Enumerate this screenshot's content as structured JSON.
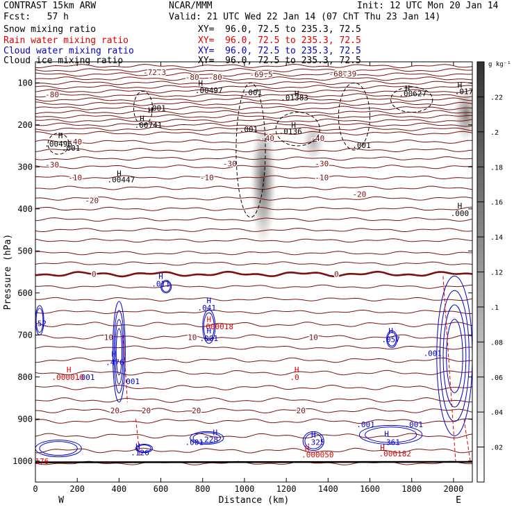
{
  "header": {
    "model": "CONTRAST 15km ARW",
    "org": "NCAR/MMM",
    "init": "Init: 12 UTC Mon 20 Jan 14",
    "fcst": "Fcst:   57 h",
    "valid": "Valid: 21 UTC Wed 22 Jan 14 (07 ChT Thu 23 Jan 14)"
  },
  "fields": [
    {
      "name": "Snow mixing ratio",
      "xy": "XY=  96.0, 72.5 to 235.3, 72.5",
      "color": "#000000"
    },
    {
      "name": "Rain water mixing ratio",
      "xy": "XY=  96.0, 72.5 to 235.3, 72.5",
      "color": "#e00000"
    },
    {
      "name": "Cloud water mixing ratio",
      "xy": "XY=  96.0, 72.5 to 235.3, 72.5",
      "color": "#0000cc"
    },
    {
      "name": "Cloud ice mixing ratio",
      "xy": "XY=  96.0, 72.5 to 235.3, 72.5",
      "color": "#000000"
    }
  ],
  "chart_data": {
    "type": "cross-section",
    "xlabel": "Distance (km)",
    "ylabel": "Pressure (hPa)",
    "xlim": [
      0,
      2090
    ],
    "ylim": [
      1050,
      50
    ],
    "x_ticks": [
      "0",
      "200",
      "400",
      "600",
      "800",
      "1000",
      "1200",
      "1400",
      "1600",
      "1800",
      "2000"
    ],
    "x_tick_values": [
      0,
      200,
      400,
      600,
      800,
      1000,
      1200,
      1400,
      1600,
      1800,
      2000
    ],
    "y_ticks": [
      "100",
      "200",
      "300",
      "400",
      "500",
      "600",
      "700",
      "800",
      "900",
      "1000"
    ],
    "y_tick_values": [
      100,
      200,
      300,
      400,
      500,
      600,
      700,
      800,
      900,
      1000
    ],
    "west_label": "W",
    "east_label": "E",
    "colorbar": {
      "unit": "g kg⁻¹",
      "ticks": [
        ".02",
        ".04",
        ".06",
        ".08",
        ".1",
        ".12",
        ".14",
        ".16",
        ".18",
        ".2",
        ".22"
      ],
      "tick_values": [
        0.02,
        0.04,
        0.06,
        0.08,
        0.1,
        0.12,
        0.14,
        0.16,
        0.18,
        0.2,
        0.22
      ],
      "range": [
        0,
        0.24
      ]
    },
    "temperature_contours": {
      "color": "#7a1010",
      "zero_color": "#7a1010",
      "levels": [
        {
          "p": 1005,
          "amp": 3,
          "label": ""
        },
        {
          "p": 975,
          "amp": 4,
          "label": ""
        },
        {
          "p": 940,
          "amp": 4,
          "label": ""
        },
        {
          "p": 905,
          "amp": 4,
          "label": ""
        },
        {
          "p": 880,
          "amp": 4,
          "label": "20",
          "lx": [
            380,
            530,
            770,
            1270
          ]
        },
        {
          "p": 855,
          "amp": 4,
          "label": ""
        },
        {
          "p": 825,
          "amp": 4,
          "label": ""
        },
        {
          "p": 790,
          "amp": 4,
          "label": ""
        },
        {
          "p": 760,
          "amp": 4,
          "label": ""
        },
        {
          "p": 730,
          "amp": 3,
          "label": ""
        },
        {
          "p": 705,
          "amp": 4,
          "label": "10",
          "lx": [
            350,
            750,
            1330
          ]
        },
        {
          "p": 675,
          "amp": 4,
          "label": ""
        },
        {
          "p": 645,
          "amp": 3,
          "label": ""
        },
        {
          "p": 615,
          "amp": 3,
          "label": ""
        },
        {
          "p": 585,
          "amp": 3,
          "label": ""
        },
        {
          "p": 555,
          "amp": 4,
          "label": "0",
          "lx": [
            280,
            1440
          ],
          "bold": true
        },
        {
          "p": 530,
          "amp": 3,
          "label": ""
        },
        {
          "p": 505,
          "amp": 3,
          "label": ""
        },
        {
          "p": 475,
          "amp": 3,
          "label": ""
        },
        {
          "p": 450,
          "amp": 3,
          "label": ""
        },
        {
          "p": 425,
          "amp": 3,
          "label": ""
        },
        {
          "p": 400,
          "amp": 3,
          "label": ""
        },
        {
          "p": 375,
          "amp": 3,
          "label": ""
        },
        {
          "p": 350,
          "amp": 3,
          "label": ""
        },
        {
          "p": 325,
          "amp": 3,
          "label": "-10",
          "lx": [
            190,
            820,
            1370
          ]
        },
        {
          "p": 300,
          "amp": 3,
          "label": ""
        },
        {
          "p": 280,
          "amp": 3,
          "label": ""
        },
        {
          "p": 260,
          "amp": 3,
          "label": ""
        },
        {
          "p": 240,
          "amp": 3,
          "label": ""
        },
        {
          "p": 220,
          "amp": 3,
          "label": ""
        },
        {
          "p": 210,
          "amp": 3,
          "label": ""
        },
        {
          "p": 200,
          "amp": 3,
          "label": ""
        },
        {
          "p": 190,
          "amp": 3,
          "label": ""
        },
        {
          "p": 180,
          "amp": 3,
          "label": ""
        },
        {
          "p": 170,
          "amp": 3,
          "label": ""
        },
        {
          "p": 160,
          "amp": 3,
          "label": ""
        },
        {
          "p": 150,
          "amp": 3,
          "label": ""
        },
        {
          "p": 140,
          "amp": 3,
          "label": ""
        },
        {
          "p": 130,
          "amp": 3,
          "label": ""
        },
        {
          "p": 120,
          "amp": 3,
          "label": ""
        },
        {
          "p": 110,
          "amp": 3,
          "label": ""
        },
        {
          "p": 100,
          "amp": 3,
          "label": ""
        },
        {
          "p": 90,
          "amp": 3,
          "label": ""
        },
        {
          "p": 80,
          "amp": 3,
          "label": ""
        },
        {
          "p": 70,
          "amp": 3,
          "label": ""
        },
        {
          "p": 60,
          "amp": 3,
          "label": ""
        }
      ],
      "labels": [
        {
          "x": 270,
          "p": 380,
          "text": "-20"
        },
        {
          "x": 1550,
          "p": 365,
          "text": "-20"
        },
        {
          "x": 80,
          "p": 295,
          "text": "-30"
        },
        {
          "x": 930,
          "p": 292,
          "text": "-30"
        },
        {
          "x": 1370,
          "p": 292,
          "text": "-30"
        },
        {
          "x": 190,
          "p": 240,
          "text": "-40"
        },
        {
          "x": 1110,
          "p": 232,
          "text": "-40"
        },
        {
          "x": 1350,
          "p": 232,
          "text": "-40"
        },
        {
          "x": 80,
          "p": 128,
          "text": "-80"
        },
        {
          "x": 750,
          "p": 86,
          "text": "-80"
        },
        {
          "x": 860,
          "p": 86,
          "text": "-80"
        },
        {
          "x": 1080,
          "p": 80,
          "text": "-69.5"
        },
        {
          "x": 1470,
          "p": 78,
          "text": "-68.39"
        },
        {
          "x": 570,
          "p": 75,
          "text": "-72.3"
        }
      ]
    },
    "snow_shading": [
      {
        "x": 1090,
        "p_top": 180,
        "p_bottom": 490,
        "value": 0.12
      },
      {
        "x": 1330,
        "p_top": 190,
        "p_bottom": 290,
        "value": 0.06
      },
      {
        "x": 2060,
        "p_top": 110,
        "p_bottom": 240,
        "value": 0.1
      }
    ],
    "cloud_ice_labels": [
      {
        "x": 1040,
        "p": 123,
        "text": ".001"
      },
      {
        "x": 580,
        "p": 160,
        "text": ".001"
      },
      {
        "x": 1020,
        "p": 210,
        "text": ".001"
      },
      {
        "x": 1560,
        "p": 248,
        "text": ".001"
      },
      {
        "x": 170,
        "p": 255,
        "text": ".001"
      }
    ],
    "maxima_labels": [
      {
        "x": 830,
        "p": 118,
        "text": ".00497",
        "color": "#000000"
      },
      {
        "x": 1240,
        "p": 135,
        "text": ".01383",
        "color": "#000000"
      },
      {
        "x": 1805,
        "p": 125,
        "text": ".00627",
        "color": "#000000"
      },
      {
        "x": 2050,
        "p": 120,
        "text": ".017",
        "color": "#000000"
      },
      {
        "x": 540,
        "p": 200,
        "text": ".00741",
        "color": "#000000"
      },
      {
        "x": 1220,
        "p": 215,
        "text": ".0136",
        "color": "#000000"
      },
      {
        "x": 110,
        "p": 245,
        "text": ".00496",
        "color": "#000000"
      },
      {
        "x": 410,
        "p": 330,
        "text": ".00447",
        "color": "#000000"
      },
      {
        "x": 2030,
        "p": 410,
        "text": ".000",
        "color": "#000000"
      },
      {
        "x": 600,
        "p": 578,
        "text": ".011",
        "color": "#0000cc"
      },
      {
        "x": 820,
        "p": 635,
        "text": ".041",
        "color": "#0000cc"
      },
      {
        "x": 20,
        "p": 672,
        "text": ".52",
        "color": "#0000cc"
      },
      {
        "x": 830,
        "p": 708,
        "text": ".001",
        "color": "#0000cc"
      },
      {
        "x": 1700,
        "p": 710,
        "text": ".057",
        "color": "#0000cc"
      },
      {
        "x": 1900,
        "p": 743,
        "text": ".001",
        "color": "#0000cc"
      },
      {
        "x": 380,
        "p": 765,
        "text": ".476",
        "color": "#0000cc"
      },
      {
        "x": 240,
        "p": 800,
        "text": ".001",
        "color": "#0000cc"
      },
      {
        "x": 455,
        "p": 810,
        "text": ".001",
        "color": "#0000cc"
      },
      {
        "x": 870,
        "p": 680,
        "text": ".000018",
        "color": "#e00000"
      },
      {
        "x": 155,
        "p": 800,
        "text": ".000010",
        "color": "#e00000"
      },
      {
        "x": 1240,
        "p": 800,
        "text": ".0",
        "color": "#e00000"
      },
      {
        "x": 500,
        "p": 980,
        "text": ".126",
        "color": "#0000cc"
      },
      {
        "x": 830,
        "p": 948,
        "text": ".228",
        "color": "#0000cc"
      },
      {
        "x": 1340,
        "p": 955,
        "text": ".325",
        "color": "#0000cc"
      },
      {
        "x": 1700,
        "p": 955,
        "text": ".361",
        "color": "#0000cc"
      },
      {
        "x": 1580,
        "p": 913,
        "text": ".001",
        "color": "#0000cc"
      },
      {
        "x": 1810,
        "p": 913,
        "text": ".001",
        "color": "#0000cc"
      },
      {
        "x": 760,
        "p": 955,
        "text": ".001",
        "color": "#0000cc"
      },
      {
        "x": 20,
        "p": 1000,
        "text": ".176",
        "color": "#e00000"
      },
      {
        "x": 1350,
        "p": 985,
        "text": ".000050",
        "color": "#e00000"
      },
      {
        "x": 1720,
        "p": 982,
        "text": ".000182",
        "color": "#e00000"
      }
    ],
    "h_markers": [
      {
        "x": 550,
        "p": 165,
        "color": "#000000"
      },
      {
        "x": 790,
        "p": 100,
        "color": "#000000"
      },
      {
        "x": 1250,
        "p": 125,
        "color": "#000000"
      },
      {
        "x": 1780,
        "p": 113,
        "color": "#000000"
      },
      {
        "x": 2030,
        "p": 105,
        "color": "#000000"
      },
      {
        "x": 510,
        "p": 185,
        "color": "#000000"
      },
      {
        "x": 1235,
        "p": 200,
        "color": "#000000"
      },
      {
        "x": 120,
        "p": 225,
        "color": "#000000"
      },
      {
        "x": 400,
        "p": 315,
        "color": "#000000"
      },
      {
        "x": 2030,
        "p": 392,
        "color": "#000000"
      },
      {
        "x": 600,
        "p": 560,
        "color": "#0000cc"
      },
      {
        "x": 830,
        "p": 618,
        "color": "#0000cc"
      },
      {
        "x": 830,
        "p": 690,
        "color": "#0000cc"
      },
      {
        "x": 1700,
        "p": 690,
        "color": "#0000cc"
      },
      {
        "x": 375,
        "p": 745,
        "color": "#0000cc"
      },
      {
        "x": 490,
        "p": 965,
        "color": "#0000cc"
      },
      {
        "x": 860,
        "p": 932,
        "color": "#0000cc"
      },
      {
        "x": 1330,
        "p": 938,
        "color": "#0000cc"
      },
      {
        "x": 1680,
        "p": 935,
        "color": "#0000cc"
      },
      {
        "x": 830,
        "p": 662,
        "color": "#e00000"
      },
      {
        "x": 160,
        "p": 782,
        "color": "#e00000"
      },
      {
        "x": 1250,
        "p": 782,
        "color": "#e00000"
      },
      {
        "x": 1300,
        "p": 970,
        "color": "#e00000"
      },
      {
        "x": 1660,
        "p": 968,
        "color": "#e00000"
      }
    ]
  }
}
